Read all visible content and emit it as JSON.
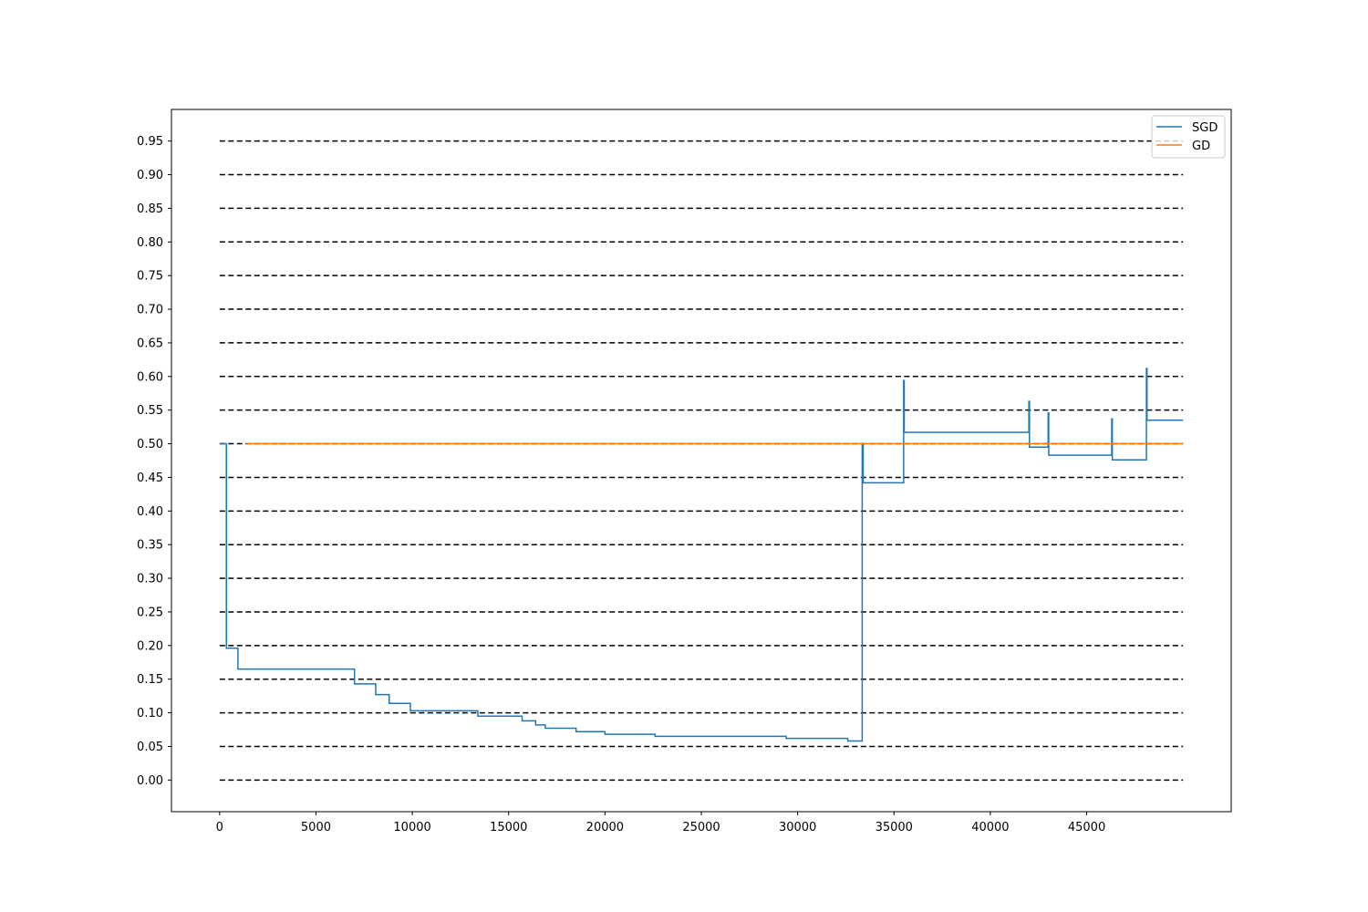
{
  "chart_data": {
    "type": "line",
    "title": "",
    "xlabel": "",
    "ylabel": "",
    "xlim": [
      -2500,
      52500
    ],
    "ylim": [
      -0.047,
      0.997
    ],
    "x_ticks": [
      0,
      5000,
      10000,
      15000,
      20000,
      25000,
      30000,
      35000,
      40000,
      45000
    ],
    "y_ticks": [
      0.0,
      0.05,
      0.1,
      0.15,
      0.2,
      0.25,
      0.3,
      0.35,
      0.4,
      0.45,
      0.5,
      0.55,
      0.6,
      0.65,
      0.7,
      0.75,
      0.8,
      0.85,
      0.9,
      0.95
    ],
    "y_tick_labels": [
      "0.00",
      "0.05",
      "0.10",
      "0.15",
      "0.20",
      "0.25",
      "0.30",
      "0.35",
      "0.40",
      "0.45",
      "0.50",
      "0.55",
      "0.60",
      "0.65",
      "0.70",
      "0.75",
      "0.80",
      "0.85",
      "0.90",
      "0.95"
    ],
    "reference_lines": {
      "style": "dashed",
      "color": "#000000",
      "x_range": [
        0,
        50000
      ],
      "y_values": [
        0.0,
        0.05,
        0.1,
        0.15,
        0.2,
        0.25,
        0.3,
        0.35,
        0.4,
        0.45,
        0.5,
        0.55,
        0.6,
        0.65,
        0.7,
        0.75,
        0.8,
        0.85,
        0.9,
        0.95
      ]
    },
    "legend": {
      "placement": "top-right"
    },
    "series": [
      {
        "name": "SGD",
        "color": "#1f77b4",
        "points": [
          [
            0,
            0.5
          ],
          [
            350,
            0.5
          ],
          [
            350,
            0.196
          ],
          [
            950,
            0.196
          ],
          [
            950,
            0.165
          ],
          [
            7000,
            0.165
          ],
          [
            7000,
            0.143
          ],
          [
            8100,
            0.143
          ],
          [
            8100,
            0.127
          ],
          [
            8800,
            0.127
          ],
          [
            8800,
            0.114
          ],
          [
            9900,
            0.114
          ],
          [
            9900,
            0.103
          ],
          [
            13400,
            0.103
          ],
          [
            13400,
            0.095
          ],
          [
            15700,
            0.095
          ],
          [
            15700,
            0.088
          ],
          [
            16400,
            0.088
          ],
          [
            16400,
            0.082
          ],
          [
            16900,
            0.082
          ],
          [
            16900,
            0.077
          ],
          [
            18500,
            0.077
          ],
          [
            18500,
            0.072
          ],
          [
            20000,
            0.072
          ],
          [
            20000,
            0.068
          ],
          [
            22600,
            0.068
          ],
          [
            22600,
            0.065
          ],
          [
            29400,
            0.065
          ],
          [
            29400,
            0.062
          ],
          [
            32600,
            0.062
          ],
          [
            32600,
            0.058
          ],
          [
            33350,
            0.058
          ],
          [
            33350,
            0.5
          ],
          [
            33400,
            0.5
          ],
          [
            33400,
            0.442
          ],
          [
            35500,
            0.442
          ],
          [
            35500,
            0.594
          ],
          [
            35530,
            0.594
          ],
          [
            35530,
            0.517
          ],
          [
            42000,
            0.517
          ],
          [
            42000,
            0.563
          ],
          [
            42030,
            0.563
          ],
          [
            42030,
            0.495
          ],
          [
            43000,
            0.495
          ],
          [
            43000,
            0.546
          ],
          [
            43030,
            0.546
          ],
          [
            43030,
            0.483
          ],
          [
            46300,
            0.483
          ],
          [
            46300,
            0.537
          ],
          [
            46330,
            0.537
          ],
          [
            46330,
            0.476
          ],
          [
            48100,
            0.476
          ],
          [
            48100,
            0.612
          ],
          [
            48130,
            0.612
          ],
          [
            48130,
            0.535
          ],
          [
            50000,
            0.535
          ]
        ]
      },
      {
        "name": "GD",
        "color": "#ff7f0e",
        "points": [
          [
            1400,
            0.5
          ],
          [
            50000,
            0.5
          ]
        ]
      }
    ]
  }
}
